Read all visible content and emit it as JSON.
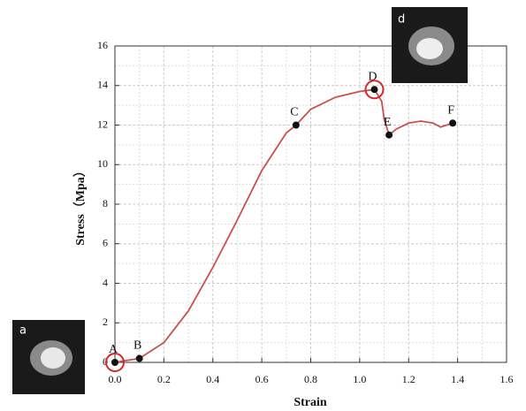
{
  "chart_data": {
    "type": "line",
    "x_label": "Strain",
    "y_label": "Stress（Mpa）",
    "x": [
      0,
      0.1,
      0.2,
      0.3,
      0.4,
      0.5,
      0.6,
      0.7,
      0.74,
      0.8,
      0.9,
      1.0,
      1.06,
      1.09,
      1.1,
      1.12,
      1.15,
      1.2,
      1.25,
      1.3,
      1.33,
      1.38
    ],
    "series": [
      {
        "color": "#c9504f",
        "values": [
          0,
          0.2,
          1.0,
          2.6,
          4.8,
          7.2,
          9.7,
          11.6,
          12.0,
          12.8,
          13.4,
          13.7,
          13.8,
          13.2,
          12.3,
          11.5,
          11.8,
          12.1,
          12.2,
          12.1,
          11.9,
          12.1
        ]
      }
    ],
    "points": {
      "labels": [
        "A",
        "B",
        "C",
        "D",
        "E",
        "F"
      ],
      "x": [
        0,
        0.1,
        0.74,
        1.06,
        1.12,
        1.38
      ],
      "y": [
        0,
        0.2,
        12.0,
        13.8,
        11.5,
        12.1
      ],
      "color": "#111111"
    },
    "circled_points": [
      0,
      3
    ],
    "circle_color": "#d62828",
    "xlim": [
      0,
      1.6
    ],
    "ylim": [
      0,
      16
    ],
    "xticks": [
      {
        "value": 0,
        "label": "0.0"
      },
      {
        "value": 0.2,
        "label": "0.2"
      },
      {
        "value": 0.4,
        "label": "0.4"
      },
      {
        "value": 0.6,
        "label": "0.6"
      },
      {
        "value": 0.8,
        "label": "0.8"
      },
      {
        "value": 1.0,
        "label": "1.0"
      },
      {
        "value": 1.2,
        "label": "1.2"
      },
      {
        "value": 1.4,
        "label": "1.4"
      },
      {
        "value": 1.6,
        "label": "1.6"
      }
    ],
    "yticks": [
      0,
      2,
      4,
      6,
      8,
      10,
      12,
      14,
      16
    ],
    "grid": true,
    "insets": [
      {
        "label": "a"
      },
      {
        "label": "d"
      }
    ]
  }
}
